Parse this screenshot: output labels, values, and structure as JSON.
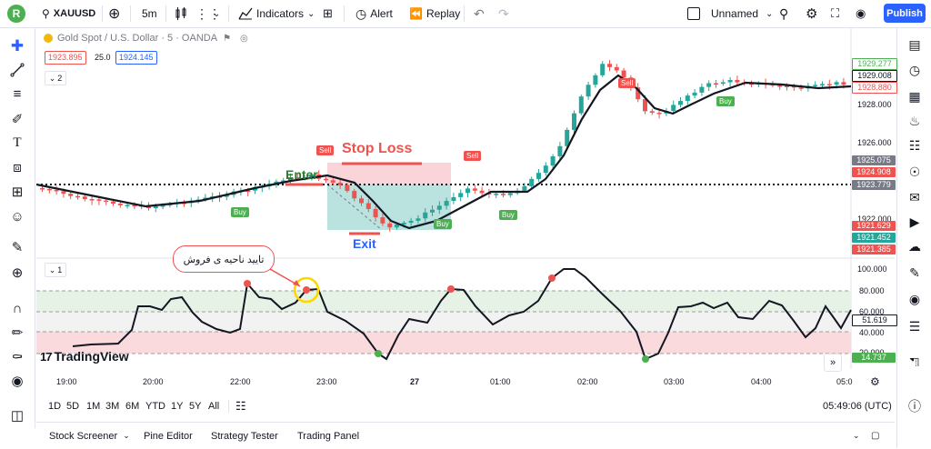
{
  "topbar": {
    "avatar_letter": "R",
    "symbol": "XAUUSD",
    "interval": "5m",
    "indicators_label": "Indicators",
    "alert_label": "Alert",
    "replay_label": "Replay",
    "layout_name": "Unnamed",
    "publish_label": "Publish"
  },
  "legend": {
    "title": "Gold Spot / U.S. Dollar · 5 · OANDA",
    "bid": "1923.895",
    "spread": "25.0",
    "ask": "1924.145",
    "study_count": "2",
    "osc_count": "1"
  },
  "annotations": {
    "stop_loss": "Stop Loss",
    "enter": "Enter",
    "exit": "Exit",
    "confirm_text": "تایید ناحیه ی فروش",
    "sell": "Sell",
    "buy": "Buy"
  },
  "price_axis": {
    "ticks": [
      "1928.000",
      "1926.000",
      "1922.000"
    ],
    "boxes": [
      {
        "text": "1929.277",
        "kind": "outline-green"
      },
      {
        "text": "1929.008",
        "kind": "outline-dark"
      },
      {
        "text": "1928.880",
        "kind": "outline-red"
      },
      {
        "text": "1925.075",
        "kind": "grey"
      },
      {
        "text": "1924.908",
        "kind": "red"
      },
      {
        "text": "1923.779",
        "kind": "grey"
      },
      {
        "text": "1921.629",
        "kind": "red"
      },
      {
        "text": "1921.452",
        "kind": "green"
      },
      {
        "text": "1921.385",
        "kind": "red"
      }
    ]
  },
  "osc_axis": {
    "ticks": [
      "100.000",
      "80.000",
      "60.000",
      "40.000",
      "20.000"
    ],
    "value_box": "51.619",
    "low_box": "14.737"
  },
  "time_axis": [
    "19:00",
    "20:00",
    "22:00",
    "23:00",
    "27",
    "01:00",
    "02:00",
    "03:00",
    "04:00",
    "05:0"
  ],
  "watermark": "TradingView",
  "range_buttons": [
    "1D",
    "5D",
    "1M",
    "3M",
    "6M",
    "YTD",
    "1Y",
    "5Y",
    "All"
  ],
  "clock": "05:49:06 (UTC)",
  "bottom_tabs": [
    "Stock Screener",
    "Pine Editor",
    "Strategy Tester",
    "Trading Panel"
  ],
  "colors": {
    "up": "#26a69a",
    "down": "#ef5350",
    "accent": "#2962ff",
    "buy": "#4caf50"
  }
}
